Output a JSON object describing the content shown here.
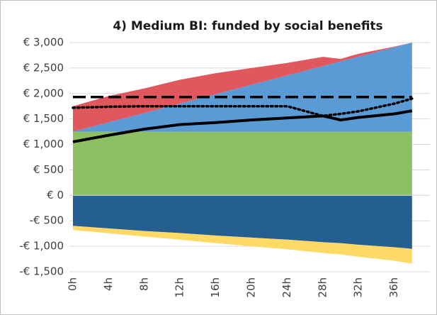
{
  "chart_data": {
    "type": "area",
    "title": "4) Medium BI: funded by social benefits",
    "x": [
      0,
      4,
      8,
      12,
      16,
      20,
      24,
      28,
      30,
      32,
      36,
      38
    ],
    "xlim": [
      0,
      40
    ],
    "xticks": [
      {
        "value": 0,
        "label": "0h"
      },
      {
        "value": 4,
        "label": "4h"
      },
      {
        "value": 8,
        "label": "8h"
      },
      {
        "value": 12,
        "label": "12h"
      },
      {
        "value": 16,
        "label": "16h"
      },
      {
        "value": 20,
        "label": "20h"
      },
      {
        "value": 24,
        "label": "24h"
      },
      {
        "value": 28,
        "label": "28h"
      },
      {
        "value": 32,
        "label": "32h"
      },
      {
        "value": 36,
        "label": "36h"
      }
    ],
    "ylim": [
      -1500,
      3000
    ],
    "yticks": [
      {
        "value": -1500,
        "label": "-€ 1,500"
      },
      {
        "value": -1000,
        "label": "-€ 1,000"
      },
      {
        "value": -500,
        "label": "-€ 500"
      },
      {
        "value": 0,
        "label": "€ 0"
      },
      {
        "value": 500,
        "label": "€ 500"
      },
      {
        "value": 1000,
        "label": "€ 1,000"
      },
      {
        "value": 1500,
        "label": "€ 1,500"
      },
      {
        "value": 2000,
        "label": "€ 2,000"
      },
      {
        "value": 2500,
        "label": "€ 2,500"
      },
      {
        "value": 3000,
        "label": "€ 3,000"
      }
    ],
    "grid": true,
    "series": [
      {
        "type": "area",
        "color": "#8dc062",
        "values": [
          1250,
          1250,
          1250,
          1250,
          1250,
          1250,
          1250,
          1250,
          1250,
          1250,
          1250,
          1250
        ]
      },
      {
        "type": "area",
        "color": "#5b9bd5",
        "values": [
          0,
          184,
          368,
          553,
          737,
          921,
          1105,
          1289,
          1382,
          1474,
          1658,
          1750
        ]
      },
      {
        "type": "area",
        "color": "#e0585e",
        "values": [
          500,
          516,
          482,
          467,
          413,
          329,
          245,
          181,
          48,
          56,
          12,
          0
        ]
      },
      {
        "type": "area",
        "color": "#255e91",
        "values": [
          -600,
          -650,
          -700,
          -740,
          -790,
          -830,
          -870,
          -920,
          -940,
          -970,
          -1020,
          -1050
        ]
      },
      {
        "type": "area",
        "color": "#ffd966",
        "values": [
          -80,
          -95,
          -110,
          -130,
          -150,
          -170,
          -190,
          -210,
          -220,
          -235,
          -265,
          -290
        ]
      },
      {
        "type": "line",
        "color": "#000000",
        "dash": "dashed",
        "values": [
          1930,
          1930,
          1930,
          1930,
          1930,
          1930,
          1930,
          1930,
          1930,
          1930,
          1930,
          1930
        ]
      },
      {
        "type": "line",
        "color": "#000000",
        "dash": "dotted",
        "values": [
          1720,
          1740,
          1750,
          1750,
          1750,
          1750,
          1750,
          1560,
          1600,
          1650,
          1800,
          1900
        ]
      },
      {
        "type": "line",
        "color": "#000000",
        "dash": "solid",
        "values": [
          1050,
          1180,
          1300,
          1390,
          1430,
          1480,
          1520,
          1560,
          1480,
          1530,
          1600,
          1660
        ]
      }
    ]
  }
}
